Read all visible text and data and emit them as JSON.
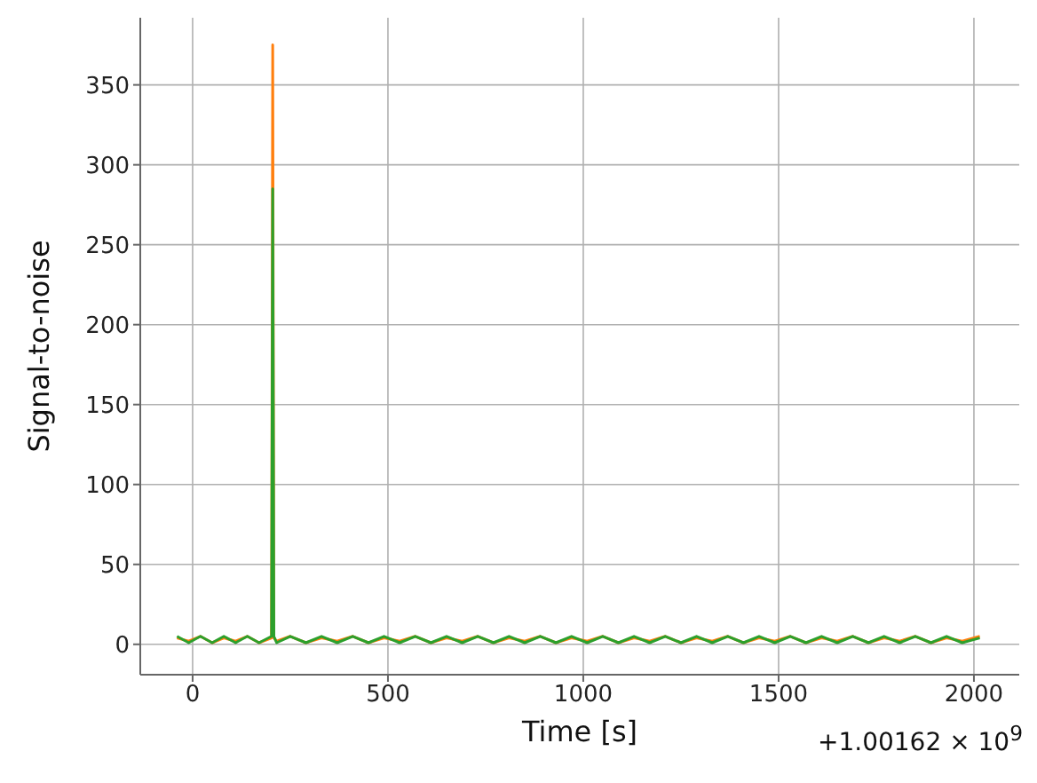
{
  "chart_data": {
    "type": "line",
    "xlabel": "Time [s]",
    "ylabel": "Signal-to-noise",
    "annotations": [
      "+1.00162 × 10$^{9}$"
    ],
    "x": [
      -40,
      -10,
      20,
      50,
      80,
      110,
      140,
      170,
      202,
      205,
      208,
      215,
      250,
      290,
      330,
      370,
      410,
      450,
      490,
      530,
      570,
      610,
      650,
      690,
      730,
      770,
      810,
      850,
      890,
      930,
      970,
      1010,
      1050,
      1090,
      1130,
      1170,
      1210,
      1250,
      1290,
      1330,
      1370,
      1410,
      1450,
      1490,
      1530,
      1570,
      1610,
      1650,
      1690,
      1730,
      1770,
      1810,
      1850,
      1890,
      1930,
      1970,
      2015
    ],
    "series": [
      {
        "color": "#ff7f0e",
        "values": [
          4,
          2,
          5,
          1,
          4,
          2,
          5,
          1,
          4,
          375,
          4,
          2,
          5,
          1,
          4,
          2,
          5,
          1,
          4,
          2,
          5,
          1,
          4,
          2,
          5,
          1,
          4,
          2,
          5,
          1,
          4,
          2,
          5,
          1,
          4,
          2,
          5,
          1,
          4,
          2,
          5,
          1,
          4,
          2,
          5,
          1,
          4,
          2,
          5,
          1,
          4,
          2,
          5,
          1,
          4,
          2,
          5
        ]
      },
      {
        "color": "#2ca02c",
        "values": [
          5,
          1,
          5,
          1,
          5,
          1,
          5,
          1,
          5,
          285,
          5,
          1,
          5,
          1,
          5,
          1,
          5,
          1,
          5,
          1,
          5,
          1,
          5,
          1,
          5,
          1,
          5,
          1,
          5,
          1,
          5,
          1,
          5,
          1,
          5,
          1,
          5,
          1,
          5,
          1,
          5,
          1,
          5,
          1,
          5,
          1,
          5,
          1,
          5,
          1,
          5,
          1,
          5,
          1,
          5,
          1,
          4
        ]
      }
    ],
    "xlim": [
      -134,
      2116
    ],
    "xticks": [
      0,
      500,
      1000,
      1500,
      2000
    ],
    "ylim": [
      -19,
      392
    ],
    "yticks": [
      0,
      50,
      100,
      150,
      200,
      250,
      300,
      350
    ],
    "grid": true,
    "marker": "none",
    "line_style": "solid"
  }
}
